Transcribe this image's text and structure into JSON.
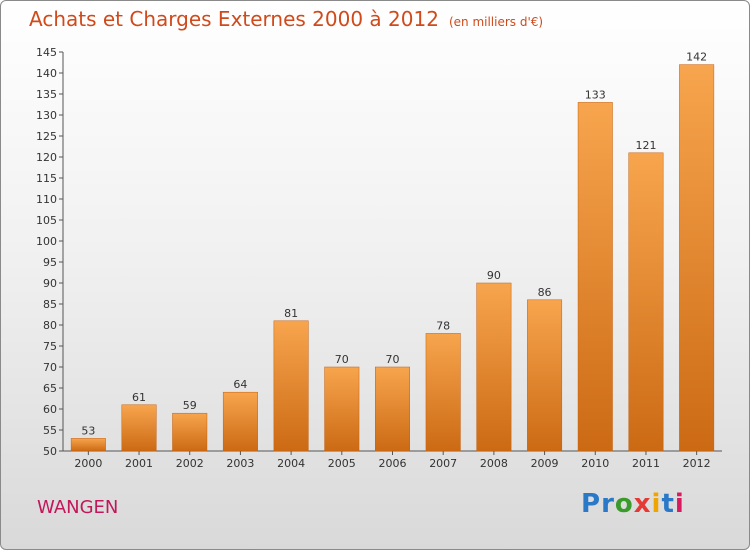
{
  "title": "Achats et Charges Externes 2000 à 2012",
  "subtitle": "(en milliers d'€)",
  "place": "WANGEN",
  "logo": {
    "text": "Proxiti",
    "letter_colors": [
      "#2a78c8",
      "#2a78c8",
      "#3a9a2a",
      "#e53935",
      "#f0a400",
      "#2a78c8",
      "#d81b60"
    ]
  },
  "colors": {
    "title": "#d04a1b",
    "place": "#c2185b",
    "bar_top": "#f7a54e",
    "bar_bottom": "#cc6a14"
  },
  "chart_data": {
    "type": "bar",
    "title": "Achats et Charges Externes 2000 à 2012",
    "categories": [
      "2000",
      "2001",
      "2002",
      "2003",
      "2004",
      "2005",
      "2006",
      "2007",
      "2008",
      "2009",
      "2010",
      "2011",
      "2012"
    ],
    "values": [
      53,
      61,
      59,
      64,
      81,
      70,
      70,
      78,
      90,
      86,
      133,
      121,
      142
    ],
    "ylim": [
      50,
      145
    ],
    "ytick_step": 5,
    "grid": false,
    "xlabel": "",
    "ylabel": ""
  }
}
